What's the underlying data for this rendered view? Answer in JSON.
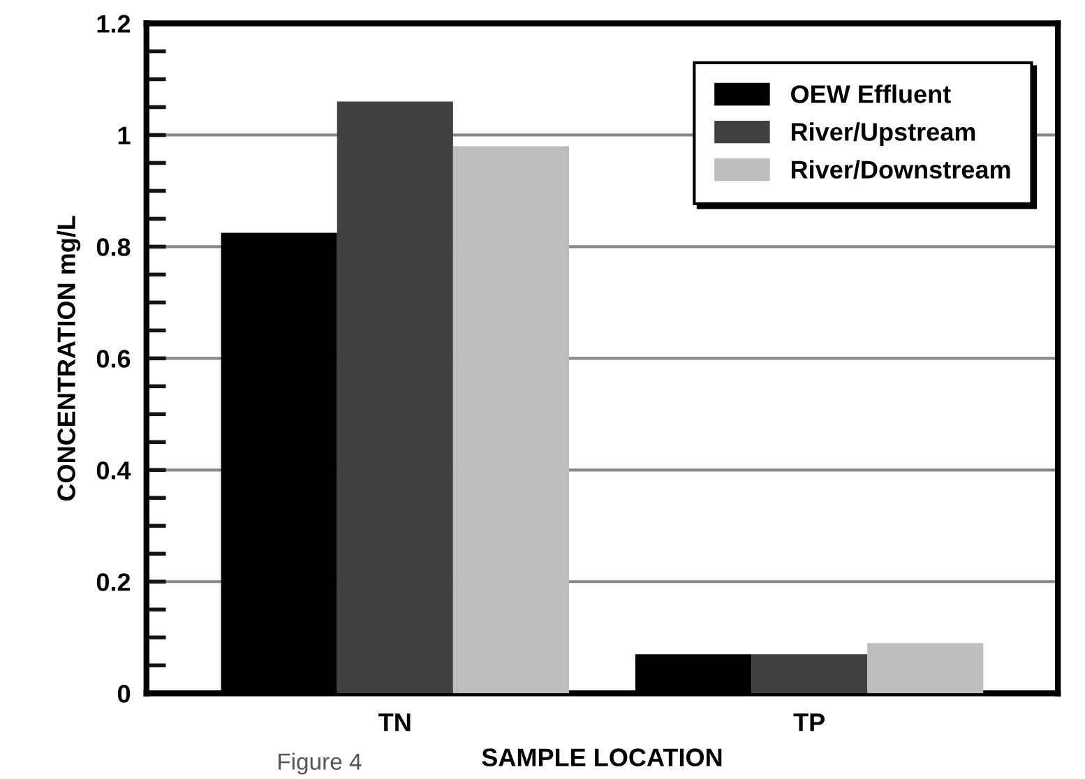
{
  "chart_data": {
    "type": "bar",
    "xlabel": "SAMPLE LOCATION",
    "ylabel": "CONCENTRATION mg/L",
    "categories": [
      "TN",
      "TP"
    ],
    "series": [
      {
        "name": "OEW Effluent",
        "color": "#000000",
        "values": [
          0.825,
          0.07
        ]
      },
      {
        "name": "River/Upstream",
        "color": "#404040",
        "values": [
          1.06,
          0.07
        ]
      },
      {
        "name": "River/Downstream",
        "color": "#bdbdbd",
        "values": [
          0.98,
          0.09
        ]
      }
    ],
    "ylim": [
      0,
      1.2
    ],
    "yticks": [
      0,
      {
        "value": 0.05,
        "label": null
      },
      {
        "value": 0.1,
        "label": null
      },
      {
        "value": 0.15,
        "label": null
      },
      0.2,
      {
        "value": 0.25,
        "label": null
      },
      {
        "value": 0.3,
        "label": null
      },
      {
        "value": 0.35,
        "label": null
      },
      0.4,
      {
        "value": 0.45,
        "label": null
      },
      {
        "value": 0.5,
        "label": null
      },
      {
        "value": 0.55,
        "label": null
      },
      0.6,
      {
        "value": 0.65,
        "label": null
      },
      {
        "value": 0.7,
        "label": null
      },
      {
        "value": 0.75,
        "label": null
      },
      0.8,
      {
        "value": 0.85,
        "label": null
      },
      {
        "value": 0.9,
        "label": null
      },
      {
        "value": 0.95,
        "label": null
      },
      1,
      {
        "value": 1.05,
        "label": null
      },
      {
        "value": 1.1,
        "label": null
      },
      {
        "value": 1.15,
        "label": null
      },
      1.2
    ],
    "grid": "y",
    "legend": "top right",
    "annotations": [
      "Figure 4"
    ]
  }
}
